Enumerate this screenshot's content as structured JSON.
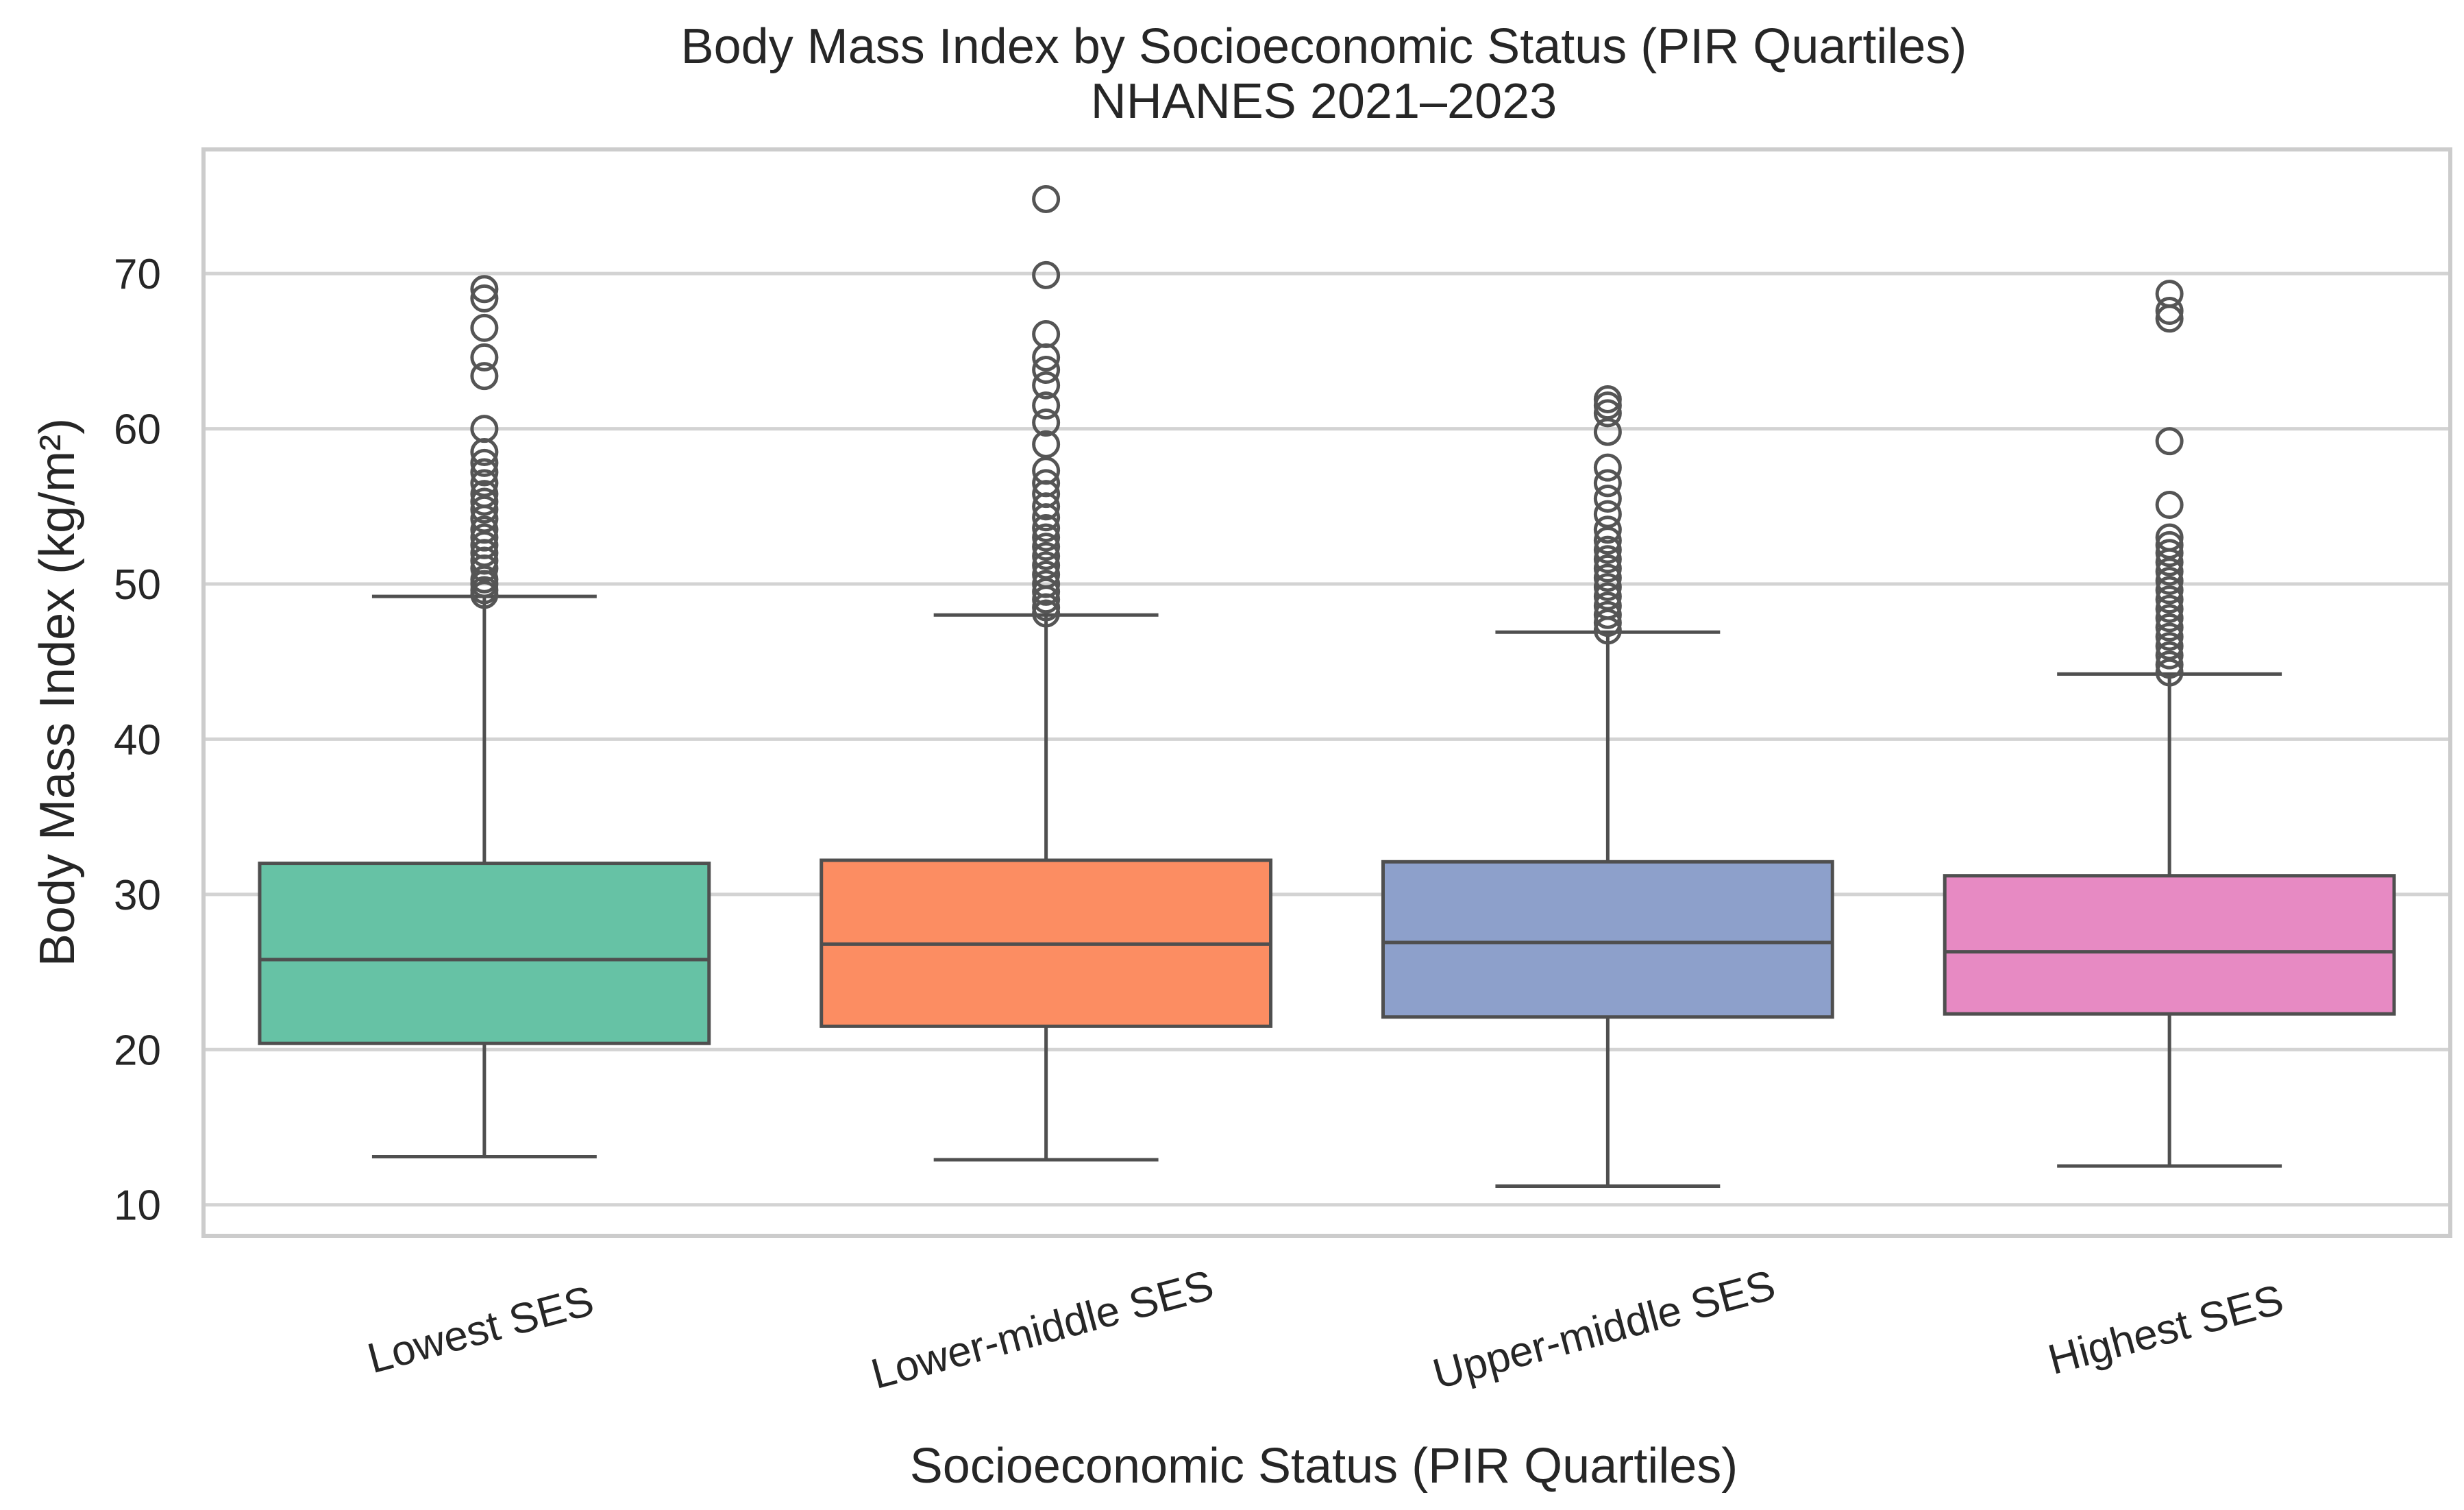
{
  "chart_data": {
    "type": "box",
    "title": "Body Mass Index by Socioeconomic Status (PIR Quartiles)",
    "subtitle": "NHANES 2021–2023",
    "xlabel": "Socioeconomic Status (PIR Quartiles)",
    "ylabel": "Body Mass Index (kg/m²)",
    "ylim": [
      8,
      78
    ],
    "yticks": [
      10,
      20,
      30,
      40,
      50,
      60,
      70
    ],
    "grid": true,
    "categories": [
      "Lowest SES",
      "Lower-middle SES",
      "Upper-middle SES",
      "Highest SES"
    ],
    "colors": [
      "#66c2a5",
      "#fc8d62",
      "#8da0cb",
      "#e78ac3"
    ],
    "series": [
      {
        "name": "Lowest SES",
        "whisker_low": 13.1,
        "q1": 20.4,
        "median": 25.8,
        "q3": 32.0,
        "whisker_high": 49.2,
        "outliers": [
          49.3,
          49.6,
          50.0,
          50.3,
          51.0,
          51.5,
          52.0,
          52.5,
          53.0,
          53.5,
          54.2,
          54.8,
          55.3,
          55.8,
          56.5,
          57.2,
          57.8,
          58.5,
          60.0,
          63.4,
          64.6,
          66.5,
          68.4,
          69.0
        ]
      },
      {
        "name": "Lower-middle SES",
        "whisker_low": 12.9,
        "q1": 21.5,
        "median": 26.8,
        "q3": 32.2,
        "whisker_high": 48.0,
        "outliers": [
          48.1,
          48.5,
          49.0,
          49.5,
          50.0,
          50.6,
          51.2,
          51.8,
          52.4,
          53.0,
          53.6,
          54.3,
          55.0,
          55.8,
          56.5,
          57.3,
          59.0,
          60.4,
          61.5,
          62.8,
          63.8,
          64.6,
          66.1,
          69.9,
          74.8
        ]
      },
      {
        "name": "Upper-middle SES",
        "whisker_low": 11.2,
        "q1": 22.1,
        "median": 26.9,
        "q3": 32.1,
        "whisker_high": 46.9,
        "outliers": [
          47.0,
          47.5,
          48.0,
          48.6,
          49.2,
          49.8,
          50.4,
          51.0,
          51.6,
          52.2,
          52.8,
          53.5,
          54.5,
          55.5,
          56.5,
          57.5,
          59.8,
          61.0,
          61.5,
          61.9
        ]
      },
      {
        "name": "Highest SES",
        "whisker_low": 12.5,
        "q1": 22.3,
        "median": 26.3,
        "q3": 31.2,
        "whisker_high": 44.2,
        "outliers": [
          44.3,
          44.8,
          45.4,
          46.0,
          46.6,
          47.2,
          47.8,
          48.4,
          49.0,
          49.6,
          50.2,
          50.8,
          51.4,
          52.0,
          52.5,
          53.0,
          55.1,
          59.2,
          67.1,
          67.6,
          68.7
        ]
      }
    ]
  }
}
